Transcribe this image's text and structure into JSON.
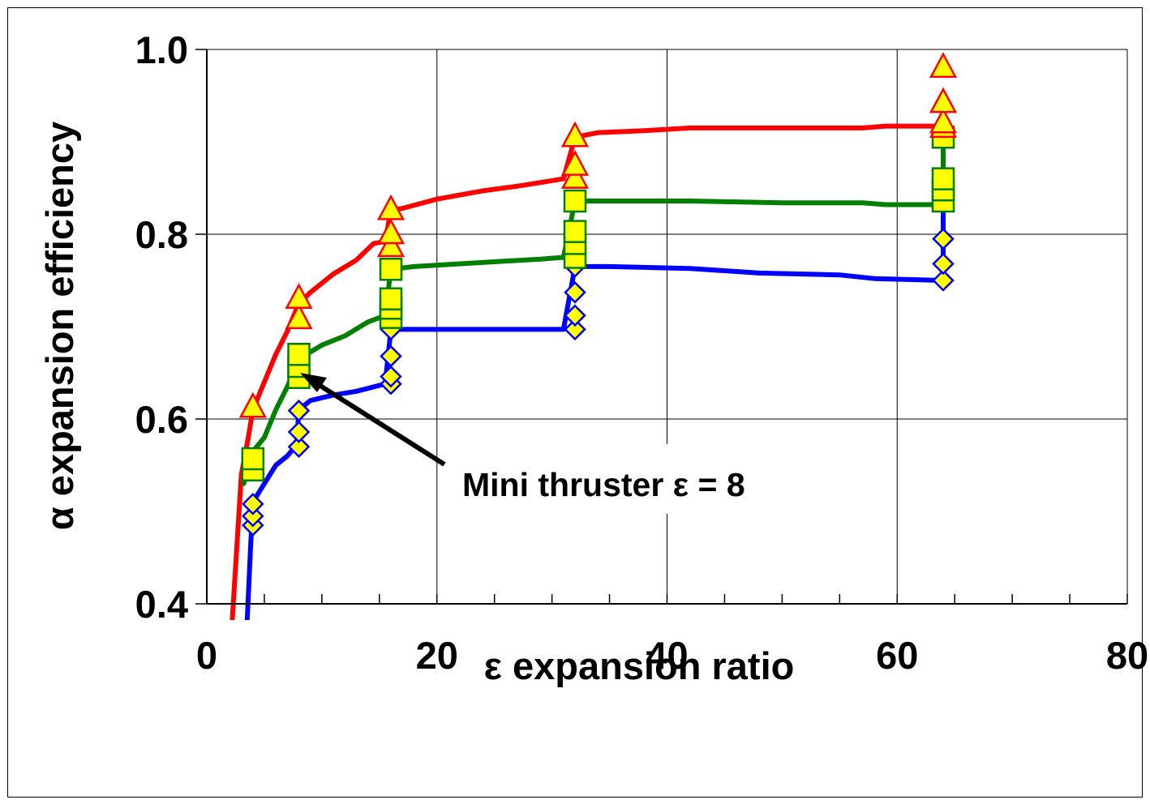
{
  "chart_data": {
    "type": "line",
    "xlabel": "ε expansion ratio",
    "ylabel": "α expansion efficiency",
    "xlim": [
      0,
      80
    ],
    "ylim": [
      0.4,
      1.0
    ],
    "x_ticks": [
      "0",
      "20",
      "40",
      "60",
      "80"
    ],
    "y_ticks": [
      "0.4",
      "0.6",
      "0.8",
      "1.0"
    ],
    "grid": true,
    "annotation": {
      "text": "Mini thruster ε = 8",
      "points_to": [
        8,
        0.655
      ]
    },
    "colors": {
      "red": "#ff0000",
      "green": "#008000",
      "blue": "#0000ff",
      "marker_fill": "#ffff00"
    },
    "series": [
      {
        "color": "#ff0000",
        "marker": "triangle",
        "line": [
          [
            2.2,
            0.38
          ],
          [
            3,
            0.54
          ],
          [
            3.6,
            0.58
          ],
          [
            4,
            0.61
          ],
          [
            5,
            0.64
          ],
          [
            6,
            0.67
          ],
          [
            7,
            0.695
          ],
          [
            8,
            0.725
          ],
          [
            9,
            0.737
          ],
          [
            11,
            0.757
          ],
          [
            13,
            0.772
          ],
          [
            14.5,
            0.79
          ],
          [
            15.5,
            0.792
          ],
          [
            16,
            0.826
          ],
          [
            17,
            0.828
          ],
          [
            20,
            0.838
          ],
          [
            24,
            0.847
          ],
          [
            27,
            0.852
          ],
          [
            29,
            0.856
          ],
          [
            31,
            0.86
          ],
          [
            32,
            0.905
          ],
          [
            34,
            0.91
          ],
          [
            38,
            0.912
          ],
          [
            42,
            0.915
          ],
          [
            50,
            0.915
          ],
          [
            57,
            0.915
          ],
          [
            59,
            0.917
          ],
          [
            64,
            0.917
          ]
        ],
        "markers": [
          [
            4,
            0.612
          ],
          [
            8,
            0.708
          ],
          [
            8,
            0.73
          ],
          [
            16,
            0.786
          ],
          [
            16,
            0.8
          ],
          [
            16,
            0.826
          ],
          [
            32,
            0.86
          ],
          [
            32,
            0.874
          ],
          [
            32,
            0.905
          ],
          [
            64,
            0.915
          ],
          [
            64,
            0.92
          ],
          [
            64,
            0.942
          ],
          [
            64,
            0.98
          ]
        ]
      },
      {
        "color": "#008000",
        "marker": "square",
        "line": [
          [
            3.2,
            0.53
          ],
          [
            3.6,
            0.545
          ],
          [
            4,
            0.565
          ],
          [
            5,
            0.58
          ],
          [
            6,
            0.61
          ],
          [
            7,
            0.635
          ],
          [
            8,
            0.665
          ],
          [
            10,
            0.68
          ],
          [
            12,
            0.69
          ],
          [
            14,
            0.705
          ],
          [
            15.5,
            0.712
          ],
          [
            16,
            0.762
          ],
          [
            18,
            0.765
          ],
          [
            22,
            0.768
          ],
          [
            26,
            0.771
          ],
          [
            29,
            0.773
          ],
          [
            31,
            0.775
          ],
          [
            32,
            0.836
          ],
          [
            35,
            0.836
          ],
          [
            42,
            0.836
          ],
          [
            50,
            0.834
          ],
          [
            57,
            0.834
          ],
          [
            59,
            0.832
          ],
          [
            64,
            0.832
          ],
          [
            64,
            0.91
          ]
        ],
        "markers": [
          [
            4,
            0.545
          ],
          [
            4,
            0.557
          ],
          [
            8,
            0.645
          ],
          [
            8,
            0.657
          ],
          [
            8,
            0.67
          ],
          [
            16,
            0.71
          ],
          [
            16,
            0.72
          ],
          [
            16,
            0.73
          ],
          [
            16,
            0.762
          ],
          [
            32,
            0.775
          ],
          [
            32,
            0.79
          ],
          [
            32,
            0.803
          ],
          [
            32,
            0.836
          ],
          [
            64,
            0.836
          ],
          [
            64,
            0.848
          ],
          [
            64,
            0.86
          ],
          [
            64,
            0.905
          ]
        ]
      },
      {
        "color": "#0000ff",
        "marker": "diamond",
        "line": [
          [
            3.5,
            0.38
          ],
          [
            3.8,
            0.46
          ],
          [
            4,
            0.51
          ],
          [
            5,
            0.53
          ],
          [
            6,
            0.55
          ],
          [
            7,
            0.56
          ],
          [
            7.8,
            0.572
          ],
          [
            8,
            0.61
          ],
          [
            9,
            0.62
          ],
          [
            11,
            0.626
          ],
          [
            13,
            0.63
          ],
          [
            15.5,
            0.638
          ],
          [
            16,
            0.697
          ],
          [
            20,
            0.697
          ],
          [
            25,
            0.697
          ],
          [
            31,
            0.697
          ],
          [
            32,
            0.765
          ],
          [
            35,
            0.765
          ],
          [
            42,
            0.763
          ],
          [
            48,
            0.758
          ],
          [
            55,
            0.756
          ],
          [
            58,
            0.752
          ],
          [
            61,
            0.751
          ],
          [
            64,
            0.75
          ],
          [
            64,
            0.832
          ]
        ],
        "markers": [
          [
            4,
            0.485
          ],
          [
            4,
            0.495
          ],
          [
            4,
            0.508
          ],
          [
            8,
            0.57
          ],
          [
            8,
            0.586
          ],
          [
            8,
            0.609
          ],
          [
            16,
            0.638
          ],
          [
            16,
            0.646
          ],
          [
            16,
            0.668
          ],
          [
            16,
            0.697
          ],
          [
            32,
            0.697
          ],
          [
            32,
            0.712
          ],
          [
            32,
            0.737
          ],
          [
            32,
            0.765
          ],
          [
            64,
            0.75
          ],
          [
            64,
            0.768
          ],
          [
            64,
            0.795
          ]
        ]
      }
    ]
  }
}
